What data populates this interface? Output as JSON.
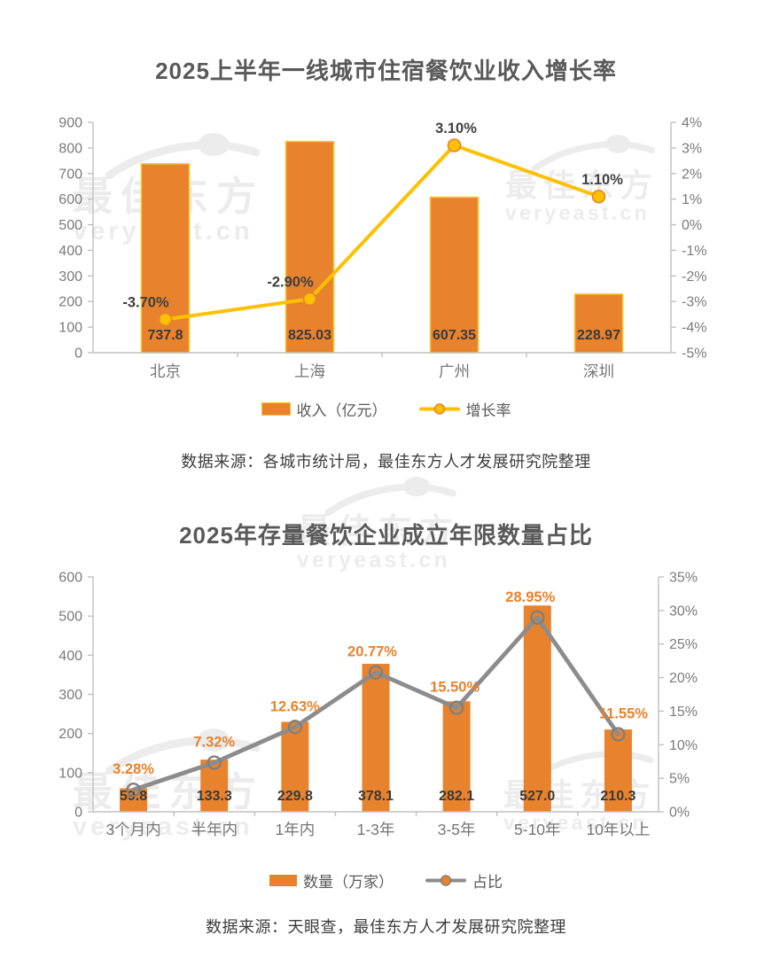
{
  "watermark": {
    "text": "最佳东方",
    "domain": "veryeast.cn"
  },
  "colors": {
    "bar_orange": "#E8822D",
    "bar_border_yellow": "#FFC425",
    "line_yellow": "#FFC000",
    "line_gray": "#8C8C8C",
    "axis_line": "#C0C0C0",
    "tick_text": "#7A7A7A",
    "category_text": "#757575",
    "title_text": "#595959"
  },
  "chart_data": [
    {
      "type": "combo-bar-line",
      "title": "2025上半年一线城市住宿餐饮业收入增长率",
      "categories": [
        "北京",
        "上海",
        "广州",
        "深圳"
      ],
      "series": [
        {
          "kind": "bar",
          "name": "收入（亿元）",
          "axis": "left",
          "color": "#E8822D",
          "border_color": "#FFC425",
          "values": [
            737.8,
            825.03,
            607.35,
            228.97
          ],
          "labels": [
            "737.8",
            "825.03",
            "607.35",
            "228.97"
          ],
          "label_color": "#3A3A3A"
        },
        {
          "kind": "line",
          "name": "增长率",
          "axis": "right",
          "color": "#FFC000",
          "marker_fill": "#FFC000",
          "marker_stroke": "#E8822D",
          "legend_marker_fill": "#FFC000",
          "values": [
            -3.7,
            -2.9,
            3.1,
            1.1
          ],
          "labels": [
            "-3.70%",
            "-2.90%",
            "3.10%",
            "1.10%"
          ],
          "label_color": "#404040",
          "label_dx": [
            -22,
            -22,
            2,
            4
          ]
        }
      ],
      "left_axis": {
        "min": 0,
        "max": 900,
        "step": 100,
        "tick_labels": [
          "0",
          "100",
          "200",
          "300",
          "400",
          "500",
          "600",
          "700",
          "800",
          "900"
        ]
      },
      "right_axis": {
        "min": -5,
        "max": 4,
        "step": 1,
        "tick_labels": [
          "-5%",
          "-4%",
          "-3%",
          "-2%",
          "-1%",
          "0%",
          "1%",
          "2%",
          "3%",
          "4%"
        ]
      },
      "grid": false,
      "legend_position": "bottom",
      "source": "数据来源：各城市统计局，最佳东方人才发展研究院整理"
    },
    {
      "type": "combo-bar-line",
      "title": "2025年存量餐饮企业成立年限数量占比",
      "categories": [
        "3个月内",
        "半年内",
        "1年内",
        "1-3年",
        "3-5年",
        "5-10年",
        "10年以上"
      ],
      "series": [
        {
          "kind": "bar",
          "name": "数量（万家）",
          "axis": "left",
          "color": "#E8822D",
          "border_color": "",
          "values": [
            59.8,
            133.3,
            229.8,
            378.1,
            282.1,
            527.0,
            210.3
          ],
          "labels": [
            "59.8",
            "133.3",
            "229.8",
            "378.1",
            "282.1",
            "527.0",
            "210.3"
          ],
          "label_color": "#3A3A3A"
        },
        {
          "kind": "line",
          "name": "占比",
          "axis": "right",
          "color": "#8C8C8C",
          "marker_fill": "none",
          "marker_stroke": "#7F7F7F",
          "legend_marker_fill": "#E8822D",
          "values": [
            3.28,
            7.32,
            12.63,
            20.77,
            15.5,
            28.95,
            11.55
          ],
          "labels": [
            "3.28%",
            "7.32%",
            "12.63%",
            "20.77%",
            "15.50%",
            "28.95%",
            "11.55%"
          ],
          "label_color": "#E8822D",
          "label_dx": [
            0,
            0,
            0,
            -4,
            -2,
            -8,
            6
          ]
        }
      ],
      "left_axis": {
        "min": 0,
        "max": 600,
        "step": 100,
        "tick_labels": [
          "0",
          "100",
          "200",
          "300",
          "400",
          "500",
          "600"
        ]
      },
      "right_axis": {
        "min": 0,
        "max": 35,
        "step": 5,
        "tick_labels": [
          "0%",
          "5%",
          "10%",
          "15%",
          "20%",
          "25%",
          "30%",
          "35%"
        ]
      },
      "grid": false,
      "legend_position": "bottom",
      "source": "数据来源：天眼查，最佳东方人才发展研究院整理"
    }
  ]
}
